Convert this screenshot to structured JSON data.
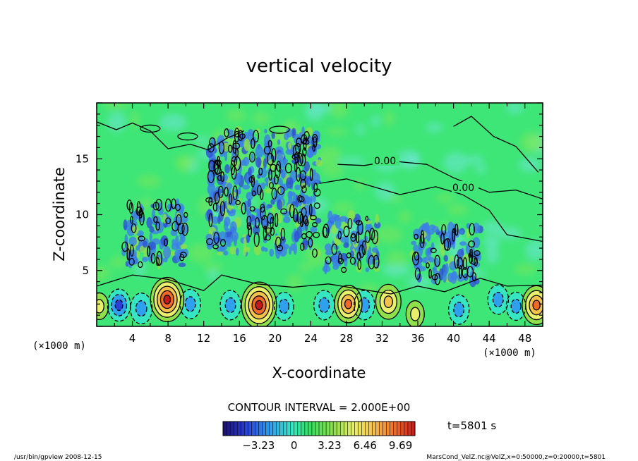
{
  "chart_data": {
    "type": "heatmap",
    "title": "vertical velocity",
    "xlabel": "X-coordinate",
    "ylabel": "Z-coordinate",
    "x_unit": "(×1000 m)",
    "z_unit": "(×1000 m)",
    "xlim": [
      0,
      50
    ],
    "ylim": [
      0,
      20
    ],
    "x_ticks": [
      4,
      8,
      12,
      16,
      20,
      24,
      28,
      32,
      36,
      40,
      44,
      48
    ],
    "y_ticks": [
      5,
      10,
      15
    ],
    "contour_interval_label": "CONTOUR INTERVAL = 2.000E+00",
    "contour_labels": [
      "0.00",
      "0.00"
    ],
    "colorbar_ticks": [
      "−3.23",
      "0",
      "3.23",
      "6.46",
      "9.69"
    ],
    "colorbar_range": [
      -6.46,
      11.0
    ],
    "time_label": "t=5801 s",
    "updrafts": [
      {
        "x": 7.9,
        "z": 2.4,
        "w": 9.0
      },
      {
        "x": 18.2,
        "z": 1.9,
        "w": 9.7
      },
      {
        "x": 28.2,
        "z": 2.0,
        "w": 6.5
      },
      {
        "x": 32.7,
        "z": 2.2,
        "w": 5.5
      },
      {
        "x": 35.7,
        "z": 1.1,
        "w": 2.5
      },
      {
        "x": 49.3,
        "z": 1.9,
        "w": 7.0
      },
      {
        "x": 0.3,
        "z": 1.8,
        "w": 2.5
      }
    ],
    "downdrafts": [
      {
        "x": 2.5,
        "z": 1.9,
        "w": -4.5
      },
      {
        "x": 5.0,
        "z": 1.6,
        "w": -4.0
      },
      {
        "x": 10.5,
        "z": 2.0,
        "w": -3.5
      },
      {
        "x": 15.0,
        "z": 1.9,
        "w": -3.5
      },
      {
        "x": 21.0,
        "z": 1.8,
        "w": -3.0
      },
      {
        "x": 25.5,
        "z": 1.9,
        "w": -3.5
      },
      {
        "x": 30.0,
        "z": 1.9,
        "w": -3.5
      },
      {
        "x": 40.6,
        "z": 1.5,
        "w": -3.5
      },
      {
        "x": 45.0,
        "z": 2.4,
        "w": -3.5
      },
      {
        "x": 47.0,
        "z": 1.8,
        "w": -3.0
      }
    ],
    "turbulent_regions": [
      {
        "x0": 12.5,
        "x1": 25.0,
        "z0": 6.5,
        "z1": 17.5
      },
      {
        "x0": 3.0,
        "x1": 10.0,
        "z0": 5.5,
        "z1": 11.0
      },
      {
        "x0": 25.5,
        "x1": 31.5,
        "z0": 5.0,
        "z1": 10.0
      },
      {
        "x0": 35.5,
        "x1": 43.0,
        "z0": 4.0,
        "z1": 9.0
      }
    ]
  },
  "footer": {
    "left": "/usr/bin/gpview   2008-12-15",
    "right": "MarsCond_VelZ.nc@VelZ,x=0:50000,z=0:20000,t=5801"
  },
  "colors": {
    "background": "#33e873",
    "frame": "#000000"
  }
}
